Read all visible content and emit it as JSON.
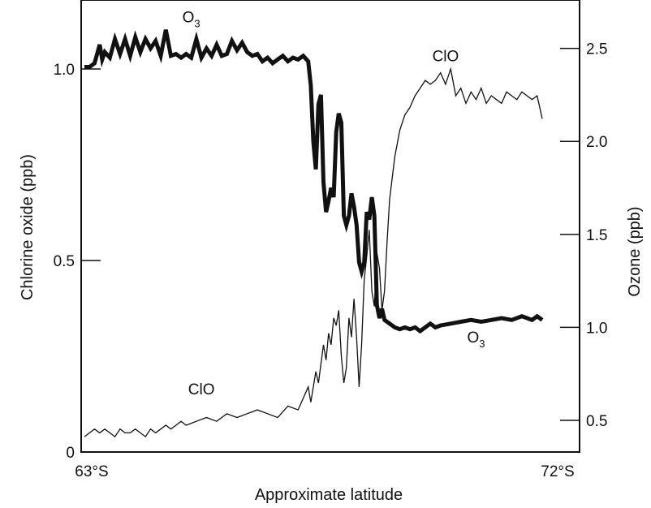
{
  "chart_data": {
    "type": "line",
    "title": "",
    "xlabel": "Approximate latitude",
    "ylabel": "Chlorine oxide (ppb)",
    "y2label": "Ozone (ppb)",
    "x_tick_labels": [
      "63°S",
      "72°S"
    ],
    "xlim": [
      63,
      72
    ],
    "ylim": [
      0,
      1.18
    ],
    "y2lim": [
      0.33,
      2.76
    ],
    "y_ticks": [
      0,
      0.5,
      1.0
    ],
    "y_tick_labels": [
      "0",
      "0.5",
      "1.0"
    ],
    "y2_ticks": [
      0.5,
      1.0,
      1.5,
      2.0,
      2.5
    ],
    "y2_tick_labels": [
      "0.5",
      "1.0",
      "1.5",
      "2.0",
      "2.5"
    ],
    "grid": false,
    "annotations": [
      {
        "series": "O3",
        "text": "O",
        "sub": "3",
        "x": 65.1,
        "y2": 2.64
      },
      {
        "series": "ClO",
        "text": "ClO",
        "x": 70.1,
        "y": 1.02
      },
      {
        "series": "O3",
        "text": "O",
        "sub": "3",
        "x": 70.7,
        "y2": 0.92
      },
      {
        "series": "ClO",
        "text": "ClO",
        "x": 65.3,
        "y": 0.15
      }
    ],
    "series": [
      {
        "name": "ClO",
        "axis": "left",
        "x": [
          63.0,
          63.1,
          63.2,
          63.3,
          63.4,
          63.5,
          63.6,
          63.7,
          63.8,
          63.9,
          64.0,
          64.1,
          64.2,
          64.3,
          64.4,
          64.5,
          64.6,
          64.7,
          64.8,
          64.9,
          65.0,
          65.2,
          65.4,
          65.6,
          65.8,
          66.0,
          66.2,
          66.4,
          66.6,
          66.8,
          67.0,
          67.2,
          67.4,
          67.45,
          67.55,
          67.6,
          67.7,
          67.75,
          67.8,
          67.85,
          67.9,
          67.95,
          68.0,
          68.05,
          68.1,
          68.15,
          68.2,
          68.25,
          68.3,
          68.35,
          68.4,
          68.45,
          68.5,
          68.55,
          68.6,
          68.65,
          68.7,
          68.75,
          68.8,
          68.85,
          68.9,
          68.95,
          69.0,
          69.1,
          69.2,
          69.3,
          69.4,
          69.5,
          69.6,
          69.7,
          69.8,
          69.9,
          70.0,
          70.1,
          70.2,
          70.3,
          70.4,
          70.5,
          70.6,
          70.7,
          70.8,
          70.9,
          71.0,
          71.1,
          71.2,
          71.3,
          71.4,
          71.5,
          71.6,
          71.7,
          71.8,
          71.9,
          71.95,
          72.0
        ],
        "values": [
          0.04,
          0.05,
          0.06,
          0.05,
          0.06,
          0.05,
          0.04,
          0.06,
          0.05,
          0.05,
          0.06,
          0.05,
          0.04,
          0.06,
          0.05,
          0.06,
          0.07,
          0.06,
          0.07,
          0.08,
          0.07,
          0.08,
          0.09,
          0.08,
          0.1,
          0.09,
          0.1,
          0.11,
          0.1,
          0.09,
          0.12,
          0.11,
          0.17,
          0.13,
          0.21,
          0.18,
          0.28,
          0.24,
          0.31,
          0.28,
          0.35,
          0.33,
          0.37,
          0.25,
          0.18,
          0.22,
          0.35,
          0.3,
          0.4,
          0.3,
          0.17,
          0.28,
          0.45,
          0.51,
          0.58,
          0.42,
          0.38,
          0.52,
          0.48,
          0.37,
          0.42,
          0.55,
          0.66,
          0.77,
          0.84,
          0.88,
          0.9,
          0.93,
          0.95,
          0.97,
          0.96,
          0.97,
          0.99,
          0.96,
          1.0,
          0.93,
          0.95,
          0.91,
          0.94,
          0.92,
          0.95,
          0.91,
          0.93,
          0.92,
          0.91,
          0.94,
          0.93,
          0.92,
          0.94,
          0.93,
          0.92,
          0.93,
          0.9,
          0.87
        ]
      },
      {
        "name": "O3",
        "axis": "right",
        "x": [
          63.0,
          63.1,
          63.2,
          63.3,
          63.35,
          63.4,
          63.5,
          63.6,
          63.7,
          63.8,
          63.9,
          64.0,
          64.1,
          64.2,
          64.3,
          64.4,
          64.5,
          64.6,
          64.7,
          64.8,
          64.9,
          65.0,
          65.1,
          65.2,
          65.3,
          65.4,
          65.5,
          65.6,
          65.7,
          65.8,
          65.9,
          66.0,
          66.1,
          66.2,
          66.3,
          66.4,
          66.5,
          66.6,
          66.7,
          66.8,
          66.9,
          67.0,
          67.1,
          67.2,
          67.3,
          67.4,
          67.45,
          67.5,
          67.55,
          67.6,
          67.65,
          67.7,
          67.75,
          67.8,
          67.85,
          67.9,
          67.95,
          68.0,
          68.05,
          68.1,
          68.15,
          68.2,
          68.25,
          68.3,
          68.35,
          68.4,
          68.45,
          68.5,
          68.55,
          68.6,
          68.65,
          68.7,
          68.75,
          68.8,
          68.85,
          68.9,
          69.0,
          69.1,
          69.2,
          69.3,
          69.4,
          69.5,
          69.6,
          69.7,
          69.8,
          69.9,
          70.0,
          70.2,
          70.4,
          70.6,
          70.8,
          71.0,
          71.2,
          71.4,
          71.6,
          71.8,
          71.9,
          72.0
        ],
        "values": [
          2.4,
          2.4,
          2.42,
          2.52,
          2.44,
          2.48,
          2.45,
          2.55,
          2.47,
          2.55,
          2.46,
          2.56,
          2.48,
          2.55,
          2.5,
          2.54,
          2.46,
          2.6,
          2.46,
          2.47,
          2.45,
          2.47,
          2.45,
          2.55,
          2.45,
          2.5,
          2.46,
          2.52,
          2.46,
          2.47,
          2.54,
          2.49,
          2.53,
          2.48,
          2.46,
          2.47,
          2.43,
          2.45,
          2.42,
          2.44,
          2.46,
          2.43,
          2.45,
          2.44,
          2.46,
          2.43,
          2.3,
          2.0,
          1.85,
          2.2,
          2.25,
          1.78,
          1.62,
          1.68,
          1.75,
          1.7,
          2.05,
          2.15,
          2.1,
          1.6,
          1.55,
          1.6,
          1.72,
          1.65,
          1.55,
          1.35,
          1.3,
          1.35,
          1.62,
          1.58,
          1.7,
          1.6,
          1.12,
          1.05,
          1.1,
          1.04,
          1.02,
          1.0,
          0.99,
          1.0,
          0.99,
          1.0,
          0.98,
          1.0,
          1.02,
          1.0,
          1.01,
          1.02,
          1.03,
          1.04,
          1.03,
          1.04,
          1.05,
          1.04,
          1.06,
          1.04,
          1.06,
          1.04
        ]
      }
    ]
  }
}
